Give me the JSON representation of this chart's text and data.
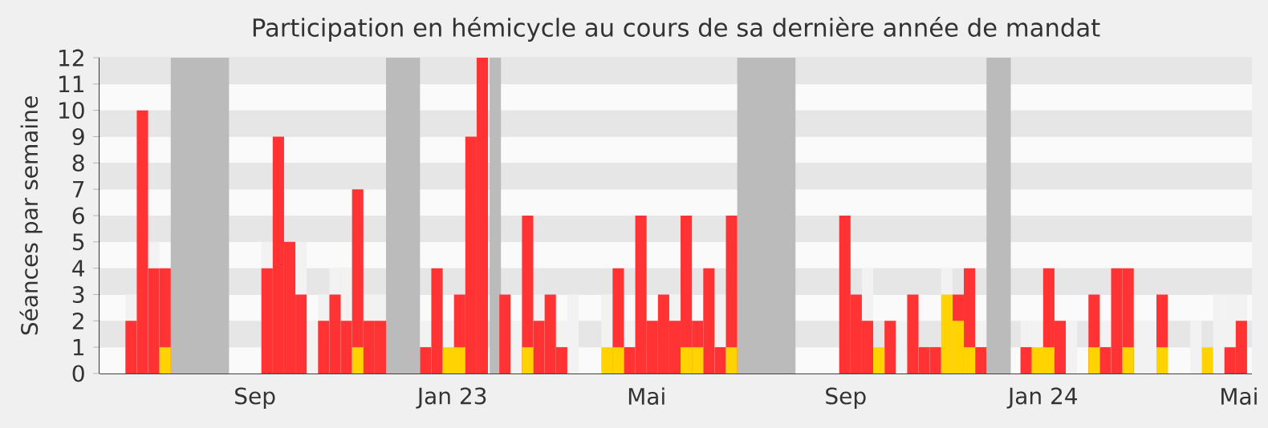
{
  "chart_data": {
    "type": "bar",
    "title": "Participation en hémicycle au cours de sa dernière année de mandat",
    "ylabel": "Séances par semaine",
    "x": [
      "2022-06-13",
      "2022-06-20",
      "2022-06-27",
      "2022-07-04",
      "2022-07-11",
      "2022-07-18",
      "2022-07-25",
      "2022-08-01",
      "2022-08-08",
      "2022-08-15",
      "2022-08-22",
      "2022-08-29",
      "2022-09-05",
      "2022-09-12",
      "2022-09-19",
      "2022-09-26",
      "2022-10-03",
      "2022-10-10",
      "2022-10-17",
      "2022-10-24",
      "2022-10-31",
      "2022-11-07",
      "2022-11-14",
      "2022-11-21",
      "2022-11-28",
      "2022-12-05",
      "2022-12-12",
      "2022-12-19",
      "2022-12-26",
      "2023-01-02",
      "2023-01-09",
      "2023-01-16",
      "2023-01-23",
      "2023-01-30",
      "2023-02-06",
      "2023-02-13",
      "2023-02-20",
      "2023-02-27",
      "2023-03-06",
      "2023-03-13",
      "2023-03-20",
      "2023-03-27",
      "2023-04-03",
      "2023-04-10",
      "2023-04-17",
      "2023-04-24",
      "2023-05-01",
      "2023-05-08",
      "2023-05-15",
      "2023-05-22",
      "2023-05-29",
      "2023-06-05",
      "2023-06-12",
      "2023-06-19",
      "2023-06-26",
      "2023-07-03",
      "2023-07-10",
      "2023-07-17",
      "2023-07-24",
      "2023-07-31",
      "2023-08-07",
      "2023-08-14",
      "2023-08-21",
      "2023-08-28",
      "2023-09-04",
      "2023-09-11",
      "2023-09-18",
      "2023-09-25",
      "2023-10-02",
      "2023-10-09",
      "2023-10-16",
      "2023-10-23",
      "2023-10-30",
      "2023-11-06",
      "2023-11-13",
      "2023-11-20",
      "2023-11-27",
      "2023-12-04",
      "2023-12-11",
      "2023-12-18",
      "2023-12-25",
      "2024-01-01",
      "2024-01-08",
      "2024-01-15",
      "2024-01-22",
      "2024-01-29",
      "2024-02-05",
      "2024-02-12",
      "2024-02-19",
      "2024-02-26",
      "2024-03-04",
      "2024-03-11",
      "2024-03-18",
      "2024-03-25",
      "2024-04-01",
      "2024-04-08",
      "2024-04-15",
      "2024-04-22",
      "2024-04-29"
    ],
    "xlim": [
      "2022-05-28",
      "2024-05-09"
    ],
    "ylim": [
      0,
      12
    ],
    "xticks": [
      {
        "value": "2022-09-01",
        "label": "Sep"
      },
      {
        "value": "2023-01-01",
        "label": "Jan 23"
      },
      {
        "value": "2023-05-01",
        "label": "Mai"
      },
      {
        "value": "2023-09-01",
        "label": "Sep"
      },
      {
        "value": "2024-01-01",
        "label": "Jan 24"
      },
      {
        "value": "2024-05-01",
        "label": "Mai"
      }
    ],
    "yticks": [
      0,
      1,
      2,
      3,
      4,
      5,
      6,
      7,
      8,
      9,
      10,
      11,
      12
    ],
    "grid": "y",
    "bands": [
      {
        "axis": "x",
        "from": "2022-07-11",
        "to": "2022-08-16",
        "color": "#bbbbbb"
      },
      {
        "axis": "x",
        "from": "2022-11-21",
        "to": "2022-12-12",
        "color": "#bbbbbb"
      },
      {
        "axis": "x",
        "from": "2023-01-24",
        "to": "2023-01-31",
        "color": "#bbbbbb"
      },
      {
        "axis": "x",
        "from": "2023-06-26",
        "to": "2023-08-01",
        "color": "#bbbbbb"
      },
      {
        "axis": "x",
        "from": "2023-11-27",
        "to": "2023-12-12",
        "color": "#bbbbbb"
      }
    ],
    "series": [
      {
        "color": "#f2f2f2",
        "values": [
          3,
          null,
          5,
          null,
          null,
          null,
          null,
          null,
          null,
          null,
          null,
          null,
          5,
          null,
          null,
          5,
          2,
          3,
          4,
          4,
          null,
          3,
          3,
          null,
          null,
          null,
          2,
          null,
          2,
          null,
          null,
          null,
          null,
          null,
          2,
          null,
          3,
          null,
          2,
          3,
          null,
          null,
          3,
          null,
          2,
          null,
          null,
          null,
          3,
          null,
          null,
          null,
          3,
          null,
          null,
          null,
          null,
          null,
          null,
          null,
          null,
          null,
          null,
          null,
          null,
          4,
          null,
          null,
          2,
          null,
          null,
          null,
          4,
          null,
          null,
          2,
          null,
          null,
          null,
          2,
          2,
          null,
          null,
          2,
          null,
          null,
          2,
          null,
          null,
          2,
          2,
          null,
          null,
          null,
          2,
          null,
          3,
          3,
          3
        ]
      },
      {
        "color": "#ff3333",
        "values": [
          2,
          10,
          4,
          4,
          null,
          null,
          null,
          null,
          null,
          null,
          null,
          null,
          4,
          9,
          5,
          3,
          null,
          2,
          3,
          2,
          7,
          2,
          2,
          null,
          null,
          null,
          1,
          4,
          null,
          3,
          9,
          12,
          null,
          3,
          null,
          6,
          2,
          3,
          1,
          null,
          null,
          null,
          null,
          4,
          1,
          6,
          2,
          3,
          2,
          6,
          2,
          4,
          1,
          6,
          null,
          null,
          null,
          null,
          null,
          null,
          null,
          null,
          null,
          6,
          3,
          2,
          null,
          2,
          null,
          3,
          1,
          1,
          null,
          3,
          4,
          1,
          null,
          null,
          null,
          1,
          null,
          4,
          2,
          null,
          null,
          3,
          1,
          4,
          4,
          null,
          null,
          3,
          null,
          null,
          null,
          null,
          null,
          1,
          2
        ]
      },
      {
        "color": "#ffd300",
        "values": [
          null,
          null,
          null,
          1,
          null,
          null,
          null,
          null,
          null,
          null,
          null,
          null,
          null,
          null,
          null,
          null,
          null,
          null,
          null,
          null,
          1,
          null,
          null,
          null,
          null,
          null,
          null,
          null,
          1,
          1,
          null,
          null,
          null,
          null,
          null,
          1,
          null,
          null,
          null,
          null,
          null,
          null,
          1,
          1,
          null,
          null,
          null,
          null,
          null,
          1,
          1,
          null,
          null,
          1,
          null,
          null,
          null,
          null,
          null,
          null,
          null,
          null,
          null,
          null,
          null,
          null,
          1,
          null,
          null,
          null,
          null,
          null,
          3,
          2,
          1,
          null,
          null,
          null,
          null,
          null,
          1,
          1,
          null,
          null,
          null,
          1,
          null,
          null,
          1,
          null,
          null,
          1,
          null,
          null,
          null,
          1,
          null,
          null,
          null
        ]
      }
    ]
  }
}
